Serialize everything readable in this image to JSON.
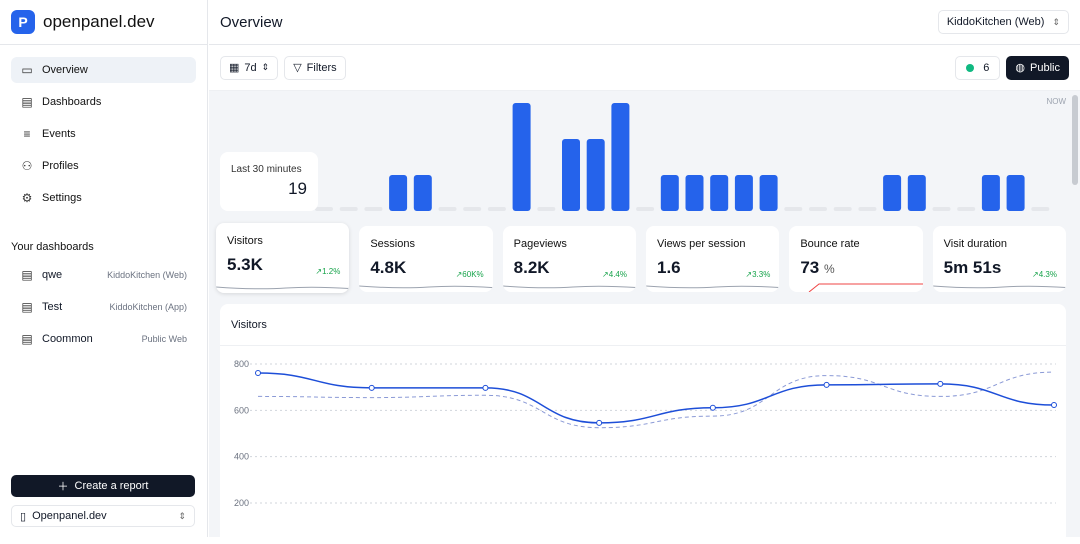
{
  "app": {
    "name": "openpanel.dev",
    "logo_letter": "P",
    "accent": "#2563eb"
  },
  "nav": [
    {
      "label": "Overview",
      "icon": "monitor-icon",
      "active": true
    },
    {
      "label": "Dashboards",
      "icon": "layout-icon"
    },
    {
      "label": "Events",
      "icon": "list-icon"
    },
    {
      "label": "Profiles",
      "icon": "users-icon"
    },
    {
      "label": "Settings",
      "icon": "gear-icon"
    }
  ],
  "dashboards": {
    "title": "Your dashboards",
    "items": [
      {
        "name": "qwe",
        "project": "KiddoKitchen (Web)"
      },
      {
        "name": "Test",
        "project": "KiddoKitchen (App)"
      },
      {
        "name": "Coommon",
        "project": "Public Web"
      }
    ]
  },
  "create_report": "Create a report",
  "org_select": "Openpanel.dev",
  "header": {
    "title": "Overview",
    "project_select": "KiddoKitchen (Web)"
  },
  "toolbar": {
    "range": "7d",
    "filters": "Filters",
    "live_count": "6",
    "public": "Public"
  },
  "live": {
    "label": "Last 30 minutes",
    "value": "19",
    "now": "NOW",
    "bars": [
      0,
      0,
      0,
      1,
      1,
      0,
      0,
      0,
      3,
      0,
      2,
      2,
      3,
      0,
      1,
      1,
      1,
      1,
      1,
      0,
      0,
      0,
      0,
      1,
      1,
      0,
      0,
      1,
      1,
      0
    ]
  },
  "metrics": [
    {
      "title": "Visitors",
      "value": "5.3K",
      "unit": "",
      "change": "1.2%",
      "spark": "#9ca3af"
    },
    {
      "title": "Sessions",
      "value": "4.8K",
      "unit": "",
      "change": "60K%",
      "spark": "#9ca3af"
    },
    {
      "title": "Pageviews",
      "value": "8.2K",
      "unit": "",
      "change": "4.4%",
      "spark": "#9ca3af"
    },
    {
      "title": "Views per session",
      "value": "1.6",
      "unit": "",
      "change": "3.3%",
      "spark": "#9ca3af"
    },
    {
      "title": "Bounce rate",
      "value": "73",
      "unit": "%",
      "change": "",
      "spark": "#ef4444"
    },
    {
      "title": "Visit duration",
      "value": "5m 51s",
      "unit": "",
      "change": "4.3%",
      "spark": "#9ca3af"
    }
  ],
  "chart_data": {
    "type": "line",
    "title": "Visitors",
    "ylim": [
      200,
      800
    ],
    "yticks": [
      800,
      600,
      400,
      200
    ],
    "grid": true,
    "series": [
      {
        "values": [
          761,
          697,
          697,
          546,
          611,
          710,
          714,
          623
        ],
        "style": "solid",
        "color": "#1d4ed8"
      },
      {
        "values": [
          660,
          655,
          665,
          525,
          575,
          750,
          660,
          765
        ],
        "style": "dashed",
        "color": "#8b9ad6"
      }
    ]
  }
}
